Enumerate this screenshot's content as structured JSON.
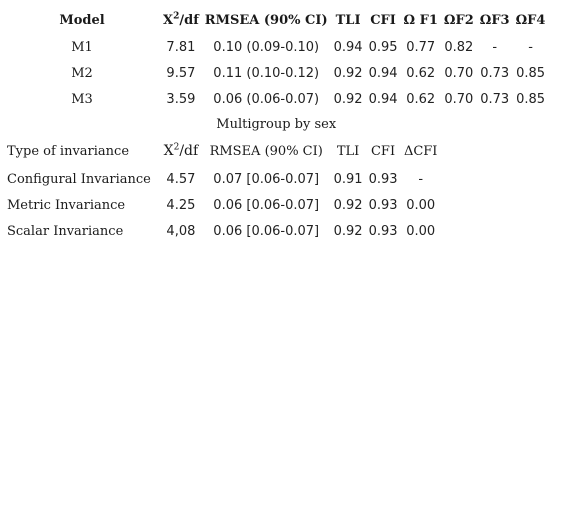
{
  "header": {
    "model": "Model",
    "chi_base": "X",
    "chi_sup": "2",
    "chi_tail": "/df",
    "rmsea": "RMSEA (90% CI)",
    "tli": "TLI",
    "cfi": "CFI",
    "of1": "Ω F1",
    "of2": "ΩF2",
    "of3": "ΩF3",
    "of4": "ΩF4"
  },
  "models": [
    {
      "name": "M1",
      "chi": "7.81",
      "rmsea": "0.10 (0.09-0.10)",
      "tli": "0.94",
      "cfi": "0.95",
      "of1": "0.77",
      "of2": "0.82",
      "of3": "-",
      "of4": "-"
    },
    {
      "name": "M2",
      "chi": "9.57",
      "rmsea": "0.11 (0.10-0.12)",
      "tli": "0.92",
      "cfi": "0.94",
      "of1": "0.62",
      "of2": "0.70",
      "of3": "0.73",
      "of4": "0.85"
    },
    {
      "name": "M3",
      "chi": "3.59",
      "rmsea": "0.06 (0.06-0.07)",
      "tli": "0.92",
      "cfi": "0.94",
      "of1": "0.62",
      "of2": "0.70",
      "of3": "0.73",
      "of4": "0.85"
    }
  ],
  "section_title": "Multigroup by sex",
  "invariance_header": {
    "type": "Type of invariance",
    "chi_base": "X",
    "chi_sup": "2",
    "chi_tail": "/df",
    "rmsea": "RMSEA (90% CI)",
    "tli": "TLI",
    "cfi": "CFI",
    "dcfi": "ΔCFI"
  },
  "invariance": [
    {
      "type": "Configural Invariance",
      "chi": "4.57",
      "rmsea": "0.07 [0.06-0.07]",
      "tli": "0.91",
      "cfi": "0.93",
      "dcfi": "-"
    },
    {
      "type": "Metric Invariance",
      "chi": "4.25",
      "rmsea": "0.06 [0.06-0.07]",
      "tli": "0.92",
      "cfi": "0.93",
      "dcfi": "0.00"
    },
    {
      "type": "Scalar Invariance",
      "chi": "4,08",
      "rmsea": "0.06 [0.06-0.07]",
      "tli": "0.92",
      "cfi": "0.93",
      "dcfi": "0.00"
    }
  ]
}
